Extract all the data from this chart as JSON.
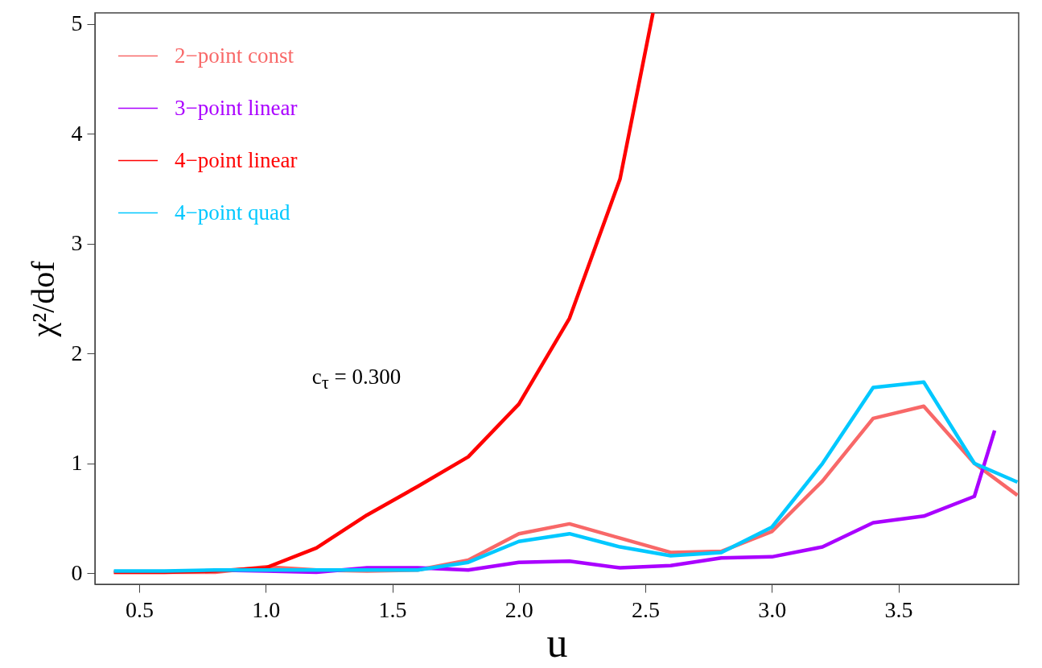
{
  "chart_data": {
    "type": "line",
    "xlabel": "u",
    "ylabel": "χ²/dof",
    "xlim": [
      0.325,
      3.975
    ],
    "ylim": [
      -0.1,
      5.1
    ],
    "xticks": [
      0.5,
      {
        "value": 1,
        "label": "1.0"
      },
      1.5,
      {
        "value": 2,
        "label": "2.0"
      },
      2.5,
      {
        "value": 3,
        "label": "3.0"
      },
      3.5
    ],
    "yticks": [
      0,
      1,
      2,
      3,
      4,
      5
    ],
    "grid": false,
    "legend": "top left",
    "marker": "none",
    "line_style": "solid",
    "annotations": [
      "c$_{τ}$ = 0.300"
    ],
    "series": [
      {
        "name": "2−point const",
        "color": "#f86868",
        "x": [
          0.4,
          0.6,
          0.8,
          1.0,
          1.2,
          1.4,
          1.6,
          1.8,
          2.0,
          2.2,
          2.4,
          2.6,
          2.8,
          3.0,
          3.2,
          3.4,
          3.6,
          3.8,
          3.97
        ],
        "values": [
          0.01,
          0.01,
          0.01,
          0.06,
          0.03,
          0.02,
          0.03,
          0.12,
          0.36,
          0.45,
          0.32,
          0.19,
          0.2,
          0.38,
          0.84,
          1.41,
          1.52,
          1.0,
          0.71
        ]
      },
      {
        "name": "3−point linear",
        "color": "#aa00ff",
        "x": [
          0.8,
          1.0,
          1.2,
          1.4,
          1.6,
          1.8,
          2.0,
          2.2,
          2.4,
          2.6,
          2.8,
          3.0,
          3.2,
          3.4,
          3.6,
          3.8,
          3.88
        ],
        "values": [
          0.03,
          0.02,
          0.01,
          0.05,
          0.05,
          0.03,
          0.1,
          0.11,
          0.05,
          0.07,
          0.14,
          0.15,
          0.24,
          0.46,
          0.52,
          0.7,
          1.3
        ]
      },
      {
        "name": "4−point linear",
        "color": "#ff0000",
        "x": [
          0.4,
          0.6,
          0.8,
          1.0,
          1.2,
          1.4,
          1.6,
          1.8,
          2.0,
          2.2,
          2.4,
          2.53
        ],
        "values": [
          0.01,
          0.01,
          0.02,
          0.05,
          0.23,
          0.53,
          0.79,
          1.06,
          1.54,
          2.32,
          3.59,
          5.1
        ]
      },
      {
        "name": "4−point quad",
        "color": "#00c8ff",
        "x": [
          0.4,
          0.6,
          0.8,
          1.0,
          1.2,
          1.4,
          1.6,
          1.8,
          2.0,
          2.2,
          2.4,
          2.6,
          2.8,
          3.0,
          3.2,
          3.4,
          3.6,
          3.8,
          3.97
        ],
        "values": [
          0.02,
          0.02,
          0.03,
          0.03,
          0.03,
          0.03,
          0.03,
          0.1,
          0.29,
          0.36,
          0.24,
          0.16,
          0.19,
          0.42,
          1.0,
          1.69,
          1.74,
          1.0,
          0.83
        ]
      }
    ]
  }
}
